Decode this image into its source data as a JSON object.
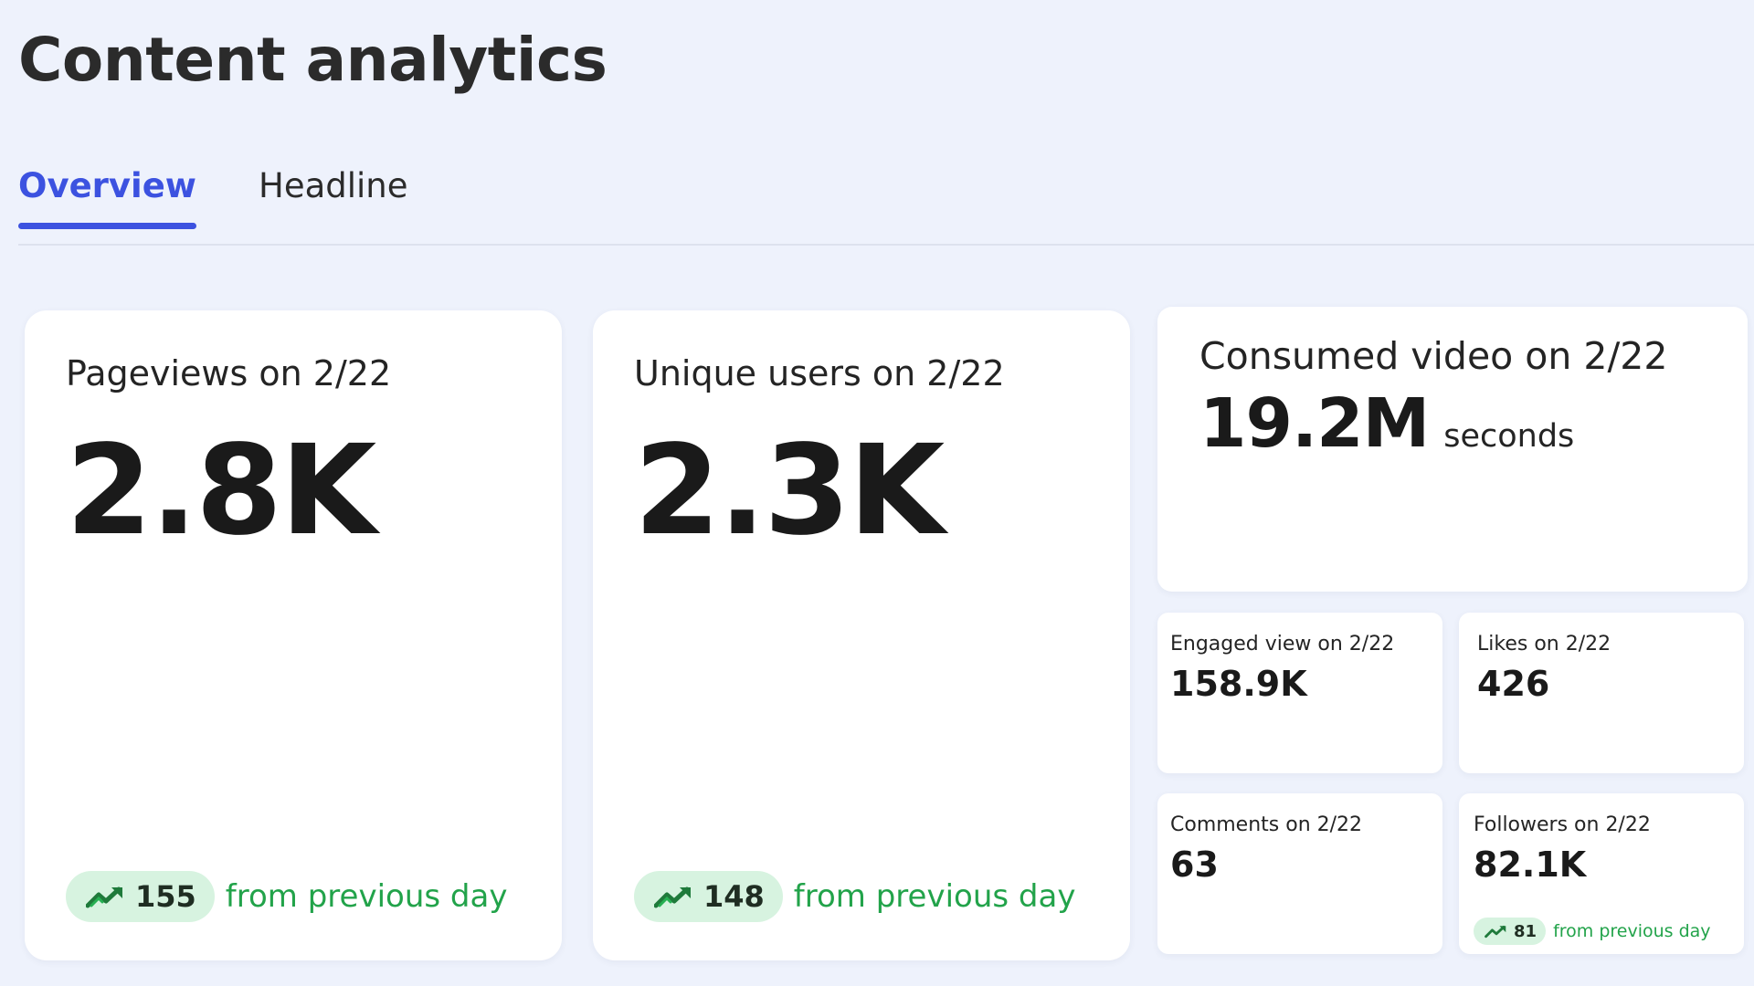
{
  "page": {
    "title": "Content analytics"
  },
  "tabs": [
    {
      "label": "Overview",
      "active": true
    },
    {
      "label": "Headline",
      "active": false
    }
  ],
  "cards": {
    "pageviews": {
      "label": "Pageviews on 2/22",
      "value": "2.8K",
      "change": "155",
      "change_text": "from previous day"
    },
    "unique_users": {
      "label": "Unique users on 2/22",
      "value": "2.3K",
      "change": "148",
      "change_text": "from previous day"
    },
    "consumed_video": {
      "label": "Consumed video on 2/22",
      "value": "19.2M",
      "unit": "seconds"
    },
    "engaged_view": {
      "label": "Engaged view on 2/22",
      "value": "158.9K"
    },
    "likes": {
      "label": "Likes on 2/22",
      "value": "426"
    },
    "comments": {
      "label": "Comments on 2/22",
      "value": "63"
    },
    "followers": {
      "label": "Followers on 2/22",
      "value": "82.1K",
      "change": "81",
      "change_text": "from previous day"
    }
  },
  "icons": {
    "trend": "trend-up-icon"
  },
  "colors": {
    "accent": "#3c52e0",
    "positive": "#22a34a",
    "positive_bg": "#d7f3e0",
    "background": "#eef2fc"
  }
}
